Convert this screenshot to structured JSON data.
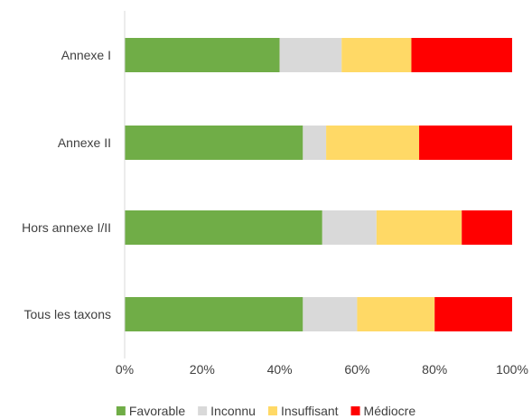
{
  "chart_data": {
    "type": "bar",
    "orientation": "horizontal",
    "stacked": true,
    "normalized": true,
    "categories": [
      "Annexe I",
      "Annexe II",
      "Hors annexe I/II",
      "Tous les taxons"
    ],
    "series": [
      {
        "name": "Favorable",
        "color": "#70ad47",
        "values": [
          40,
          46,
          51,
          46
        ]
      },
      {
        "name": "Inconnu",
        "color": "#d9d9d9",
        "values": [
          16,
          6,
          14,
          14
        ]
      },
      {
        "name": "Insuffisant",
        "color": "#ffd966",
        "values": [
          18,
          24,
          22,
          20
        ]
      },
      {
        "name": "Médiocre",
        "color": "#ff0000",
        "values": [
          26,
          24,
          13,
          20
        ]
      }
    ],
    "xlim": [
      0,
      100
    ],
    "x_ticks": [
      "0%",
      "20%",
      "40%",
      "60%",
      "80%",
      "100%"
    ],
    "legend_position": "bottom",
    "grid": false,
    "title": "",
    "xlabel": "",
    "ylabel": ""
  }
}
